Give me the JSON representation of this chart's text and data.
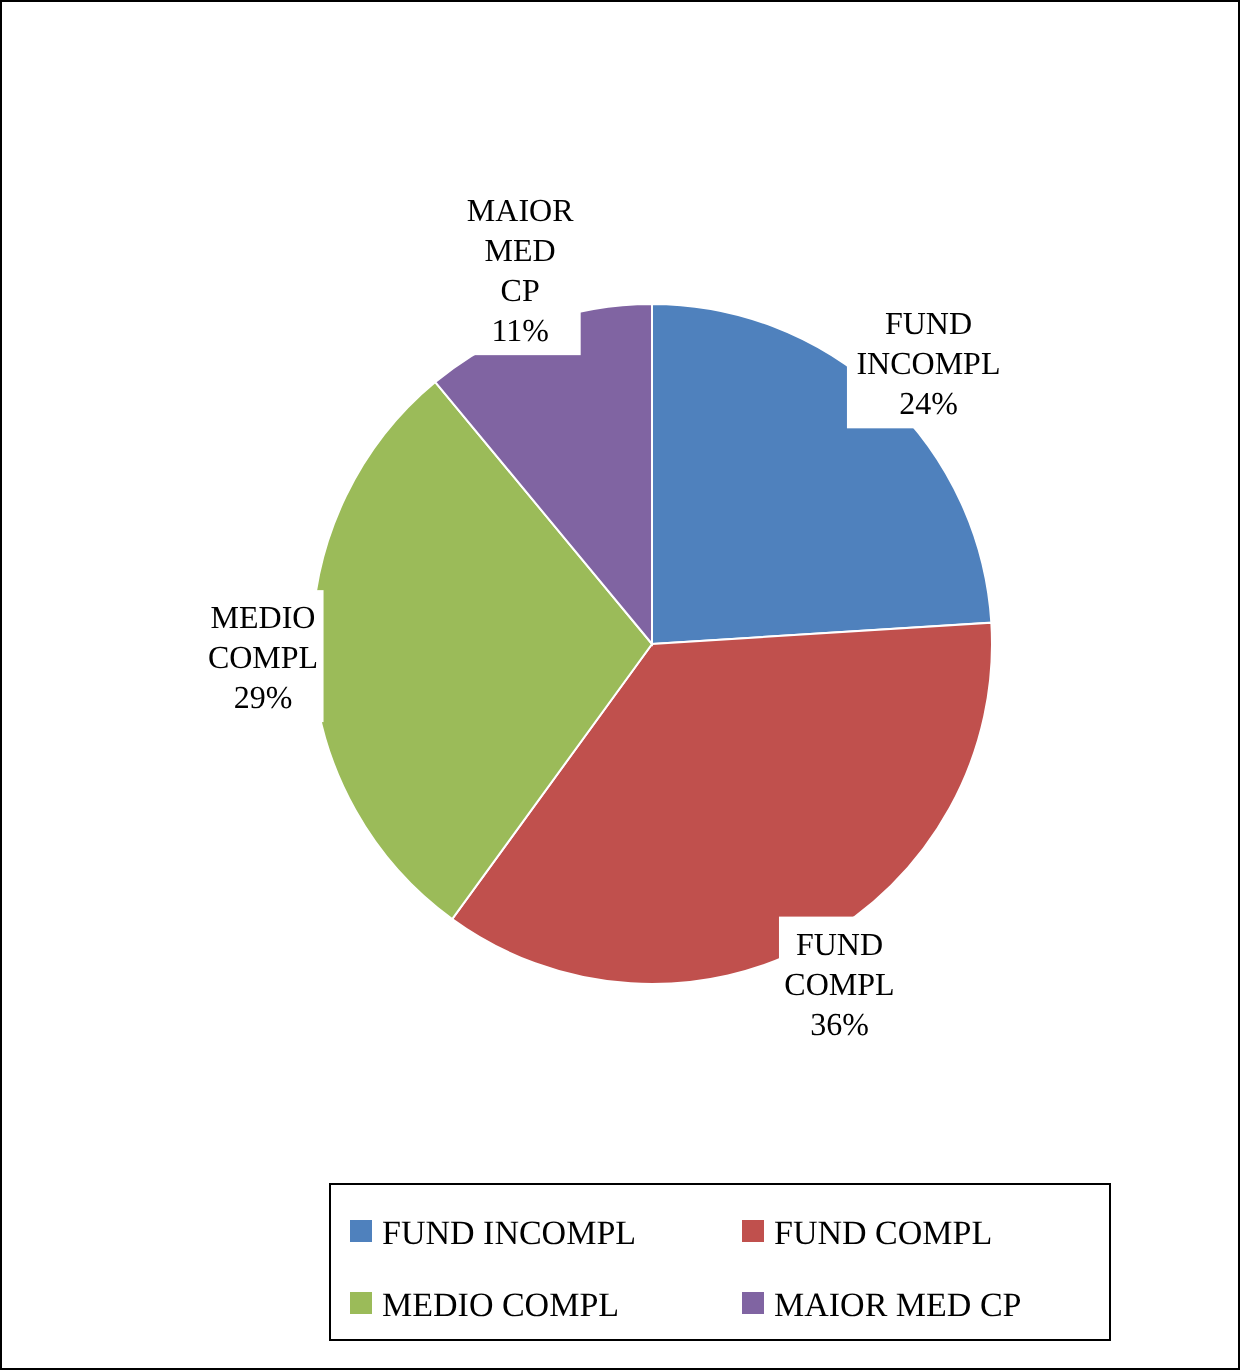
{
  "chart_data": {
    "type": "pie",
    "categories": [
      "FUND INCOMPL",
      "FUND COMPL",
      "MEDIO COMPL",
      "MAIOR MED CP"
    ],
    "values": [
      24,
      36,
      29,
      11
    ],
    "colors": [
      "#4f81bd",
      "#c0504d",
      "#9bbb59",
      "#8064a2"
    ],
    "value_labels": [
      "24%",
      "36%",
      "29%",
      "11%"
    ],
    "legend": "bottom"
  }
}
